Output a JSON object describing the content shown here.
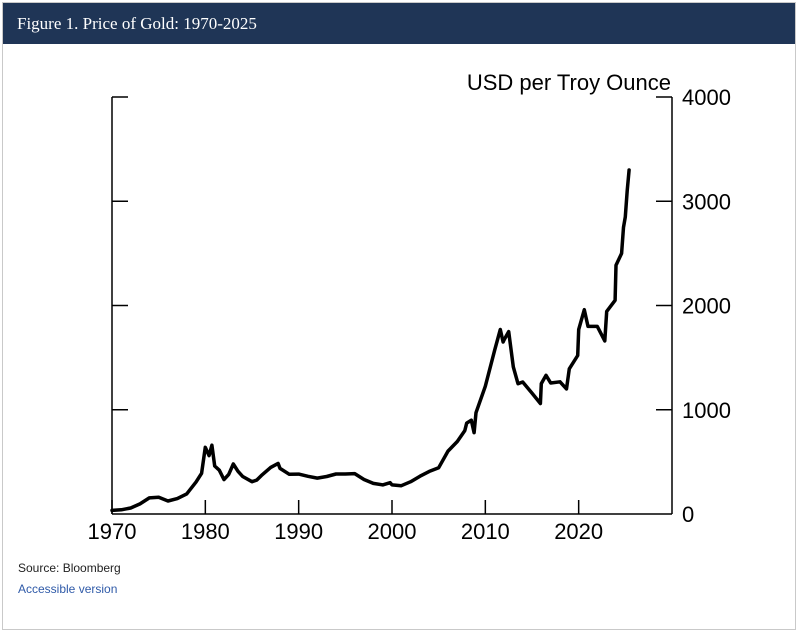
{
  "header": {
    "title": "Figure 1. Price of Gold: 1970-2025"
  },
  "chart_data": {
    "type": "line",
    "title": "Figure 1. Price of Gold: 1970-2025",
    "ylabel": "USD per Troy Ounce",
    "xlabel": "",
    "xlim": [
      1970,
      2030
    ],
    "ylim": [
      0,
      4000
    ],
    "x_ticks": [
      1970,
      1980,
      1990,
      2000,
      2010,
      2020
    ],
    "y_ticks": [
      0,
      1000,
      2000,
      3000,
      4000
    ],
    "y_axis_side": "right",
    "grid": false,
    "legend": "none",
    "line_color": "#000000",
    "series": [
      {
        "points": [
          [
            1970,
            35
          ],
          [
            1971,
            40
          ],
          [
            1972,
            58
          ],
          [
            1973,
            97
          ],
          [
            1974,
            154
          ],
          [
            1975,
            160
          ],
          [
            1976,
            125
          ],
          [
            1977,
            148
          ],
          [
            1978,
            193
          ],
          [
            1979,
            306
          ],
          [
            1979.6,
            390
          ],
          [
            1980,
            640
          ],
          [
            1980.4,
            560
          ],
          [
            1980.7,
            660
          ],
          [
            1981,
            460
          ],
          [
            1981.5,
            420
          ],
          [
            1982,
            330
          ],
          [
            1982.5,
            380
          ],
          [
            1983,
            480
          ],
          [
            1983.5,
            410
          ],
          [
            1984,
            360
          ],
          [
            1985,
            310
          ],
          [
            1985.5,
            325
          ],
          [
            1986,
            368
          ],
          [
            1987,
            447
          ],
          [
            1987.8,
            485
          ],
          [
            1988,
            437
          ],
          [
            1989,
            381
          ],
          [
            1990,
            383
          ],
          [
            1991,
            362
          ],
          [
            1992,
            344
          ],
          [
            1993,
            360
          ],
          [
            1994,
            384
          ],
          [
            1995,
            384
          ],
          [
            1996,
            388
          ],
          [
            1997,
            331
          ],
          [
            1998,
            294
          ],
          [
            1999,
            279
          ],
          [
            1999.8,
            300
          ],
          [
            2000,
            279
          ],
          [
            2001,
            271
          ],
          [
            2002,
            310
          ],
          [
            2003,
            363
          ],
          [
            2004,
            409
          ],
          [
            2005,
            444
          ],
          [
            2006,
            603
          ],
          [
            2007,
            695
          ],
          [
            2007.8,
            800
          ],
          [
            2008,
            872
          ],
          [
            2008.5,
            900
          ],
          [
            2008.8,
            780
          ],
          [
            2009,
            972
          ],
          [
            2010,
            1225
          ],
          [
            2011,
            1572
          ],
          [
            2011.6,
            1770
          ],
          [
            2011.9,
            1650
          ],
          [
            2012,
            1669
          ],
          [
            2012.5,
            1750
          ],
          [
            2013,
            1411
          ],
          [
            2013.5,
            1250
          ],
          [
            2014,
            1266
          ],
          [
            2015,
            1160
          ],
          [
            2015.9,
            1060
          ],
          [
            2016,
            1251
          ],
          [
            2016.5,
            1330
          ],
          [
            2017,
            1257
          ],
          [
            2018,
            1268
          ],
          [
            2018.7,
            1200
          ],
          [
            2019,
            1393
          ],
          [
            2019.9,
            1520
          ],
          [
            2020,
            1770
          ],
          [
            2020.6,
            1960
          ],
          [
            2021,
            1800
          ],
          [
            2022,
            1800
          ],
          [
            2022.8,
            1660
          ],
          [
            2023,
            1943
          ],
          [
            2023.9,
            2050
          ],
          [
            2024,
            2386
          ],
          [
            2024.6,
            2500
          ],
          [
            2024.8,
            2750
          ],
          [
            2025,
            2850
          ],
          [
            2025.2,
            3100
          ],
          [
            2025.4,
            3300
          ]
        ]
      }
    ]
  },
  "footer": {
    "source": "Source: Bloomberg",
    "link": "Accessible version"
  }
}
